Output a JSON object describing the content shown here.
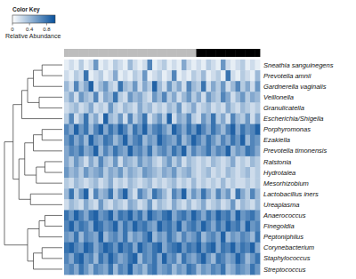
{
  "chart_data": {
    "type": "heatmap",
    "title": "Color Key",
    "colorbar_label": "Relative Abundance",
    "color_range": [
      0,
      1
    ],
    "color_ticks": [
      0,
      0.4,
      0.8
    ],
    "colors": [
      "#ffffff",
      "#08519c"
    ],
    "rows": [
      "Sneathia sanguinegens",
      "Prevotella amnii",
      "Gardnerella vaginalis",
      "Veillonella",
      "Granulicatella",
      "Escherichia/Shigella",
      "Porphyromonas",
      "Ezakiella",
      "Prevotella timonensis",
      "Ralstonia",
      "Hydrotalea",
      "Mesorhizobium",
      "Lactobacillus iners",
      "Ureaplasma",
      "Anaerococcus",
      "Finegoldia",
      "Peptoniphilus",
      "Corynebacterium",
      "Staphylococcus",
      "Streptococcus"
    ],
    "column_groups": {
      "groups": [
        0,
        0,
        0,
        0,
        0,
        0,
        0,
        0,
        0,
        0,
        0,
        0,
        0,
        0,
        0,
        0,
        0,
        0,
        0,
        0,
        0,
        0,
        0,
        0,
        0,
        0,
        0,
        1,
        1,
        1,
        1,
        1,
        1,
        1,
        1,
        1,
        1,
        1,
        1,
        1
      ],
      "colors": [
        "#bdbdbd",
        "#000000"
      ]
    },
    "dendrogram": [
      [
        0,
        1,
        0.35
      ],
      [
        20,
        2,
        0.5
      ],
      [
        3,
        4,
        0.4
      ],
      [
        21,
        22,
        0.6
      ],
      [
        23,
        5,
        0.7
      ],
      [
        6,
        7,
        0.35
      ],
      [
        25,
        8,
        0.5
      ],
      [
        9,
        10,
        0.3
      ],
      [
        27,
        11,
        0.45
      ],
      [
        26,
        28,
        0.65
      ],
      [
        12,
        13,
        0.55
      ],
      [
        29,
        30,
        0.75
      ],
      [
        24,
        31,
        0.85
      ],
      [
        14,
        15,
        0.3
      ],
      [
        33,
        16,
        0.4
      ],
      [
        17,
        18,
        0.35
      ],
      [
        35,
        19,
        0.5
      ],
      [
        34,
        36,
        0.6
      ],
      [
        32,
        37,
        1.0
      ]
    ],
    "cells": [
      [
        0.1,
        0.2,
        0.1,
        0.3,
        0.1,
        0.2,
        0.6,
        0.1,
        0.2,
        0.1,
        0.3,
        0.2,
        0.1,
        0.4,
        0.2,
        0.1,
        0.2,
        0.7,
        0.1,
        0.2,
        0.3,
        0.1,
        0.2,
        0.1,
        0.5,
        0.2,
        0.1,
        0.2,
        0.1,
        0.3,
        0.2,
        0.1,
        0.6,
        0.2,
        0.1,
        0.2,
        0.3,
        0.1,
        0.2,
        0.1
      ],
      [
        0.2,
        0.1,
        0.3,
        0.2,
        0.8,
        0.1,
        0.2,
        0.3,
        0.1,
        0.2,
        0.5,
        0.1,
        0.2,
        0.1,
        0.3,
        0.2,
        0.6,
        0.1,
        0.2,
        0.3,
        0.1,
        0.2,
        0.7,
        0.1,
        0.2,
        0.1,
        0.3,
        0.2,
        0.4,
        0.1,
        0.2,
        0.3,
        0.1,
        0.8,
        0.2,
        0.1,
        0.3,
        0.2,
        0.1,
        0.4
      ],
      [
        0.4,
        0.2,
        0.7,
        0.3,
        0.5,
        0.9,
        0.2,
        0.4,
        0.6,
        0.3,
        0.2,
        0.8,
        0.4,
        0.3,
        0.6,
        0.2,
        0.5,
        0.3,
        0.9,
        0.4,
        0.2,
        0.6,
        0.3,
        0.5,
        0.2,
        0.7,
        0.4,
        0.3,
        0.8,
        0.2,
        0.5,
        0.3,
        0.6,
        0.2,
        0.4,
        0.7,
        0.3,
        0.5,
        0.2,
        0.6
      ],
      [
        0.3,
        0.5,
        0.2,
        0.6,
        0.4,
        0.3,
        0.7,
        0.2,
        0.5,
        0.4,
        0.8,
        0.3,
        0.2,
        0.6,
        0.4,
        0.5,
        0.3,
        0.2,
        0.6,
        0.4,
        0.7,
        0.3,
        0.5,
        0.2,
        0.4,
        0.6,
        0.3,
        0.5,
        0.2,
        0.6,
        0.4,
        0.3,
        0.7,
        0.5,
        0.2,
        0.4,
        0.6,
        0.3,
        0.5,
        0.4
      ],
      [
        0.2,
        0.3,
        0.4,
        0.2,
        0.3,
        0.5,
        0.2,
        0.3,
        0.2,
        0.6,
        0.3,
        0.2,
        0.4,
        0.3,
        0.2,
        0.5,
        0.3,
        0.4,
        0.2,
        0.3,
        0.2,
        0.4,
        0.3,
        0.6,
        0.2,
        0.3,
        0.5,
        0.2,
        0.3,
        0.4,
        0.2,
        0.3,
        0.2,
        0.5,
        0.3,
        0.2,
        0.4,
        0.3,
        0.2,
        0.3
      ],
      [
        0.3,
        0.7,
        0.2,
        0.4,
        0.8,
        0.3,
        0.5,
        0.2,
        0.9,
        0.4,
        0.3,
        0.6,
        0.2,
        0.7,
        0.3,
        0.5,
        0.8,
        0.2,
        0.4,
        0.6,
        0.3,
        0.9,
        0.2,
        0.5,
        0.4,
        0.7,
        0.3,
        0.2,
        0.6,
        0.4,
        0.8,
        0.3,
        0.5,
        0.2,
        0.7,
        0.4,
        0.3,
        0.6,
        0.2,
        0.5
      ],
      [
        0.7,
        0.5,
        0.9,
        0.6,
        0.8,
        0.4,
        0.7,
        0.9,
        0.5,
        0.8,
        0.6,
        0.9,
        0.7,
        0.4,
        0.8,
        0.6,
        0.9,
        0.5,
        0.7,
        0.8,
        0.6,
        0.4,
        0.9,
        0.7,
        0.5,
        0.8,
        0.6,
        0.9,
        0.7,
        0.5,
        0.8,
        0.6,
        0.4,
        0.7,
        0.9,
        0.5,
        0.8,
        0.6,
        0.7,
        0.9
      ],
      [
        0.6,
        0.8,
        0.5,
        0.7,
        0.4,
        0.9,
        0.6,
        0.5,
        0.8,
        0.7,
        0.4,
        0.6,
        0.9,
        0.5,
        0.7,
        0.8,
        0.4,
        0.6,
        0.5,
        0.9,
        0.7,
        0.6,
        0.5,
        0.8,
        0.4,
        0.6,
        0.9,
        0.7,
        0.5,
        0.8,
        0.6,
        0.4,
        0.7,
        0.5,
        0.8,
        0.6,
        0.9,
        0.4,
        0.7,
        0.6
      ],
      [
        0.5,
        0.7,
        0.6,
        0.8,
        0.5,
        0.6,
        0.9,
        0.4,
        0.7,
        0.5,
        0.8,
        0.6,
        0.5,
        0.9,
        0.6,
        0.7,
        0.5,
        0.8,
        0.4,
        0.6,
        0.7,
        0.5,
        0.8,
        0.6,
        0.9,
        0.4,
        0.7,
        0.5,
        0.6,
        0.8,
        0.5,
        0.7,
        0.6,
        0.9,
        0.4,
        0.6,
        0.5,
        0.8,
        0.7,
        0.5
      ],
      [
        0.5,
        0.3,
        0.6,
        0.4,
        0.2,
        0.5,
        0.3,
        0.7,
        0.4,
        0.3,
        0.6,
        0.2,
        0.5,
        0.4,
        0.3,
        0.6,
        0.4,
        0.5,
        0.3,
        0.2,
        0.4,
        0.6,
        0.3,
        0.5,
        0.2,
        0.4,
        0.3,
        0.2,
        0.3,
        0.2,
        0.4,
        0.3,
        0.2,
        0.3,
        0.5,
        0.2,
        0.3,
        0.2,
        0.4,
        0.3
      ],
      [
        0.6,
        0.4,
        0.5,
        0.3,
        0.6,
        0.4,
        0.5,
        0.6,
        0.3,
        0.5,
        0.4,
        0.6,
        0.3,
        0.5,
        0.4,
        0.3,
        0.6,
        0.5,
        0.4,
        0.3,
        0.5,
        0.4,
        0.6,
        0.3,
        0.4,
        0.5,
        0.3,
        0.2,
        0.3,
        0.4,
        0.2,
        0.3,
        0.2,
        0.4,
        0.3,
        0.2,
        0.3,
        0.4,
        0.2,
        0.3
      ],
      [
        0.3,
        0.2,
        0.4,
        0.3,
        0.2,
        0.3,
        0.4,
        0.2,
        0.3,
        0.5,
        0.2,
        0.3,
        0.2,
        0.4,
        0.3,
        0.2,
        0.3,
        0.4,
        0.2,
        0.3,
        0.2,
        0.3,
        0.4,
        0.2,
        0.3,
        0.2,
        0.4,
        0.2,
        0.3,
        0.2,
        0.3,
        0.2,
        0.4,
        0.2,
        0.3,
        0.2,
        0.2,
        0.3,
        0.2,
        0.3
      ],
      [
        0.4,
        0.8,
        0.3,
        0.6,
        0.9,
        0.2,
        0.7,
        0.4,
        0.5,
        0.8,
        0.3,
        0.6,
        0.9,
        0.4,
        0.2,
        0.7,
        0.5,
        0.3,
        0.8,
        0.6,
        0.4,
        0.2,
        0.7,
        0.5,
        0.9,
        0.3,
        0.6,
        0.4,
        0.8,
        0.5,
        0.3,
        0.7,
        0.4,
        0.6,
        0.2,
        0.8,
        0.5,
        0.3,
        0.7,
        0.4
      ],
      [
        0.2,
        0.4,
        0.3,
        0.2,
        0.5,
        0.3,
        0.2,
        0.6,
        0.3,
        0.2,
        0.4,
        0.3,
        0.2,
        0.5,
        0.4,
        0.2,
        0.3,
        0.6,
        0.2,
        0.4,
        0.3,
        0.2,
        0.5,
        0.3,
        0.2,
        0.4,
        0.2,
        0.3,
        0.5,
        0.2,
        0.3,
        0.4,
        0.2,
        0.3,
        0.6,
        0.2,
        0.4,
        0.3,
        0.2,
        0.4
      ],
      [
        0.8,
        0.6,
        0.9,
        0.7,
        0.5,
        0.8,
        0.9,
        0.6,
        0.7,
        0.9,
        0.5,
        0.8,
        0.7,
        0.9,
        0.6,
        0.8,
        0.5,
        0.9,
        0.7,
        0.6,
        0.8,
        0.9,
        0.5,
        0.7,
        0.8,
        0.6,
        0.9,
        0.7,
        0.5,
        0.8,
        0.6,
        0.9,
        0.7,
        0.8,
        0.5,
        0.9,
        0.6,
        0.7,
        0.8,
        0.6
      ],
      [
        0.7,
        0.9,
        0.6,
        0.8,
        0.7,
        0.5,
        0.9,
        0.8,
        0.6,
        0.7,
        0.9,
        0.5,
        0.8,
        0.6,
        0.9,
        0.7,
        0.8,
        0.6,
        0.5,
        0.9,
        0.7,
        0.8,
        0.6,
        0.9,
        0.5,
        0.7,
        0.8,
        0.6,
        0.9,
        0.7,
        0.5,
        0.8,
        0.6,
        0.9,
        0.7,
        0.8,
        0.5,
        0.9,
        0.6,
        0.7
      ],
      [
        0.6,
        0.5,
        0.8,
        0.4,
        0.7,
        0.6,
        0.5,
        0.9,
        0.4,
        0.6,
        0.7,
        0.5,
        0.8,
        0.4,
        0.6,
        0.5,
        0.7,
        0.9,
        0.4,
        0.6,
        0.5,
        0.8,
        0.6,
        0.4,
        0.7,
        0.5,
        0.6,
        0.8,
        0.4,
        0.6,
        0.7,
        0.5,
        0.9,
        0.4,
        0.6,
        0.5,
        0.7,
        0.6,
        0.4,
        0.8
      ],
      [
        0.8,
        0.9,
        0.7,
        0.6,
        0.9,
        0.8,
        0.5,
        0.7,
        0.9,
        0.8,
        0.6,
        0.9,
        0.7,
        0.8,
        0.5,
        0.9,
        0.7,
        0.6,
        0.8,
        0.9,
        0.5,
        0.7,
        0.8,
        0.9,
        0.6,
        0.8,
        0.7,
        0.9,
        0.6,
        0.8,
        0.9,
        0.5,
        0.8,
        0.7,
        0.9,
        0.6,
        0.8,
        0.7,
        0.9,
        0.5
      ],
      [
        0.7,
        0.5,
        0.8,
        0.9,
        0.6,
        0.7,
        0.4,
        0.8,
        0.6,
        0.9,
        0.7,
        0.5,
        0.6,
        0.8,
        0.9,
        0.4,
        0.7,
        0.6,
        0.8,
        0.5,
        0.9,
        0.6,
        0.7,
        0.4,
        0.8,
        0.6,
        0.5,
        0.7,
        0.9,
        0.6,
        0.4,
        0.8,
        0.7,
        0.5,
        0.6,
        0.9,
        0.7,
        0.4,
        0.6,
        0.8
      ],
      [
        0.6,
        0.7,
        0.5,
        0.8,
        0.6,
        0.4,
        0.7,
        0.6,
        0.5,
        0.8,
        0.4,
        0.7,
        0.6,
        0.9,
        0.5,
        0.6,
        0.4,
        0.7,
        0.8,
        0.5,
        0.6,
        0.7,
        0.4,
        0.6,
        0.5,
        0.8,
        0.7,
        0.4,
        0.6,
        0.5,
        0.7,
        0.6,
        0.8,
        0.4,
        0.5,
        0.7,
        0.6,
        0.5,
        0.8,
        0.6
      ]
    ]
  }
}
